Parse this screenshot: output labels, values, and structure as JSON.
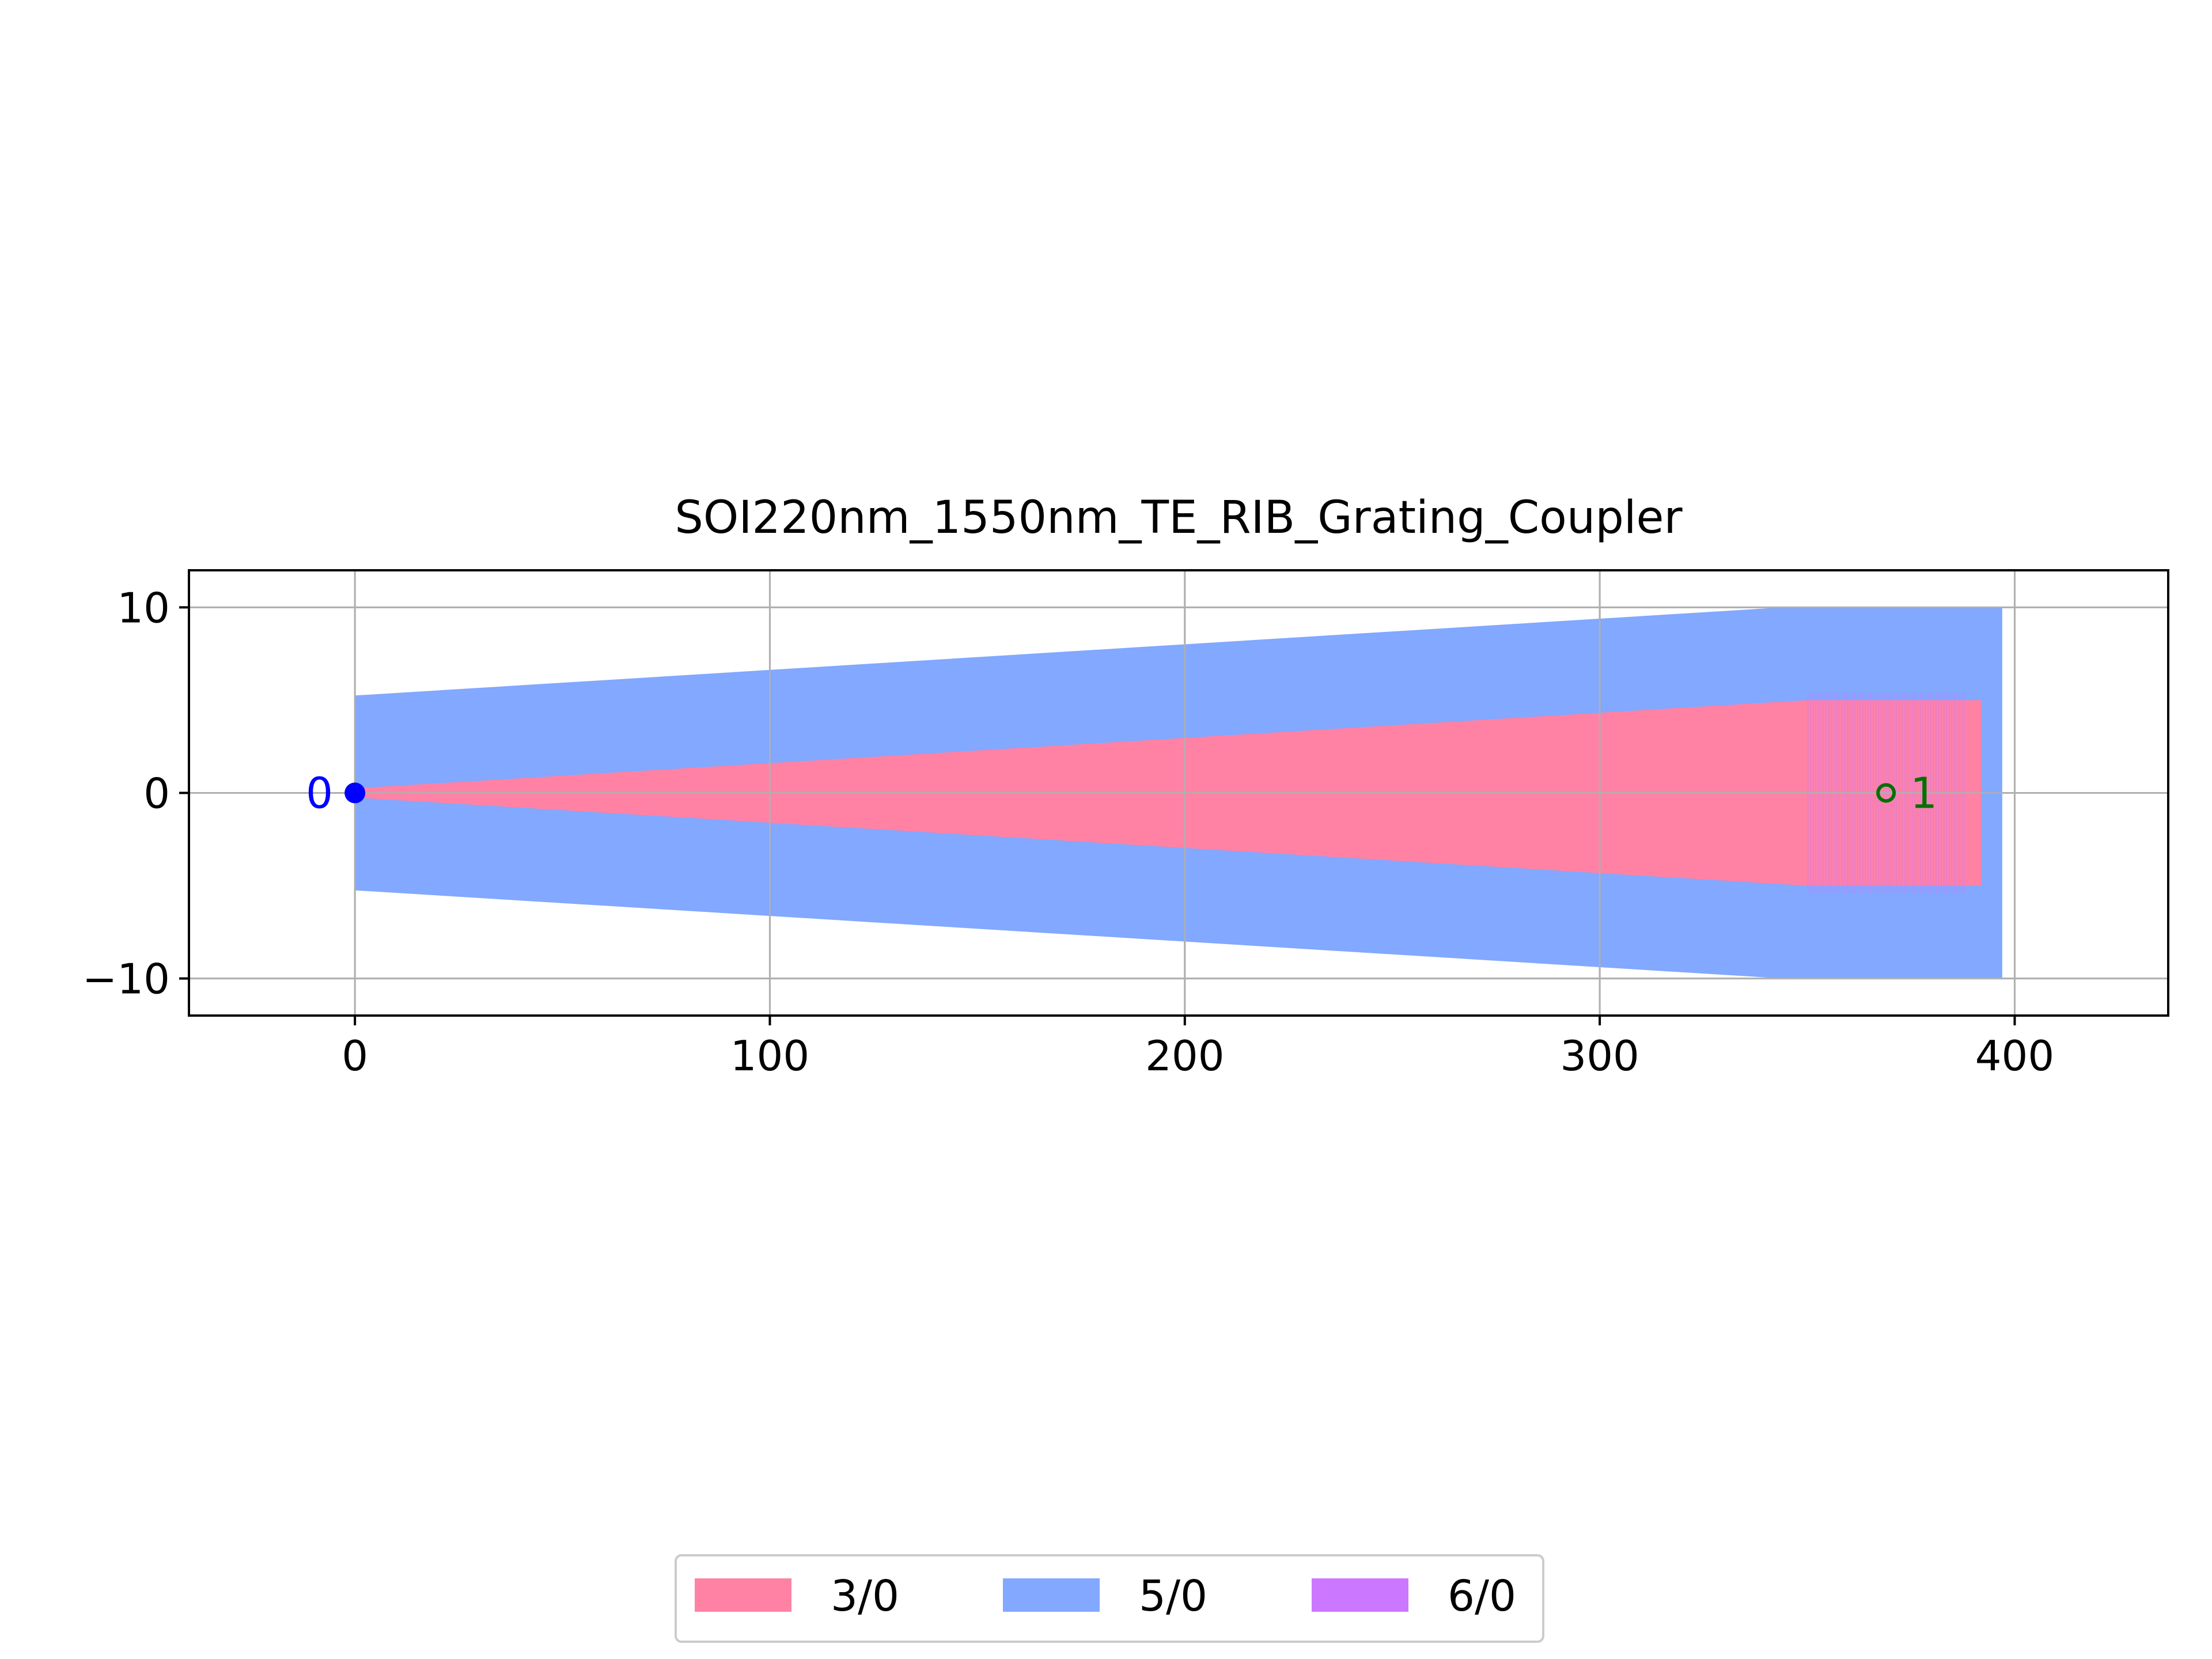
{
  "chart_data": {
    "type": "area",
    "title": "SOI220nm_1550nm_TE_RIB_Grating_Coupler",
    "xlabel": "",
    "ylabel": "",
    "xlim": [
      -40,
      437
    ],
    "ylim": [
      -12,
      12
    ],
    "x_ticks": [
      0,
      100,
      200,
      300,
      400
    ],
    "x_tick_labels": [
      "0",
      "100",
      "200",
      "300",
      "400"
    ],
    "y_ticks": [
      -10,
      0,
      10
    ],
    "y_tick_labels": [
      "−10",
      "0",
      "10"
    ],
    "grid": true,
    "legend_position": "bottom-center",
    "series": [
      {
        "name": "3/0",
        "color": "#ff82a5",
        "shapes": [
          {
            "kind": "polygon",
            "points": [
              [
                0,
                0.25
              ],
              [
                350,
                5
              ],
              [
                392,
                5
              ],
              [
                392,
                -5
              ],
              [
                350,
                -5
              ],
              [
                0,
                -0.25
              ]
            ]
          }
        ]
      },
      {
        "name": "5/0",
        "color": "#82a8ff",
        "shapes": [
          {
            "kind": "polygon",
            "points": [
              [
                0,
                5.25
              ],
              [
                344,
                10
              ],
              [
                397,
                10
              ],
              [
                397,
                -10
              ],
              [
                344,
                -10
              ],
              [
                0,
                -5.25
              ]
            ]
          }
        ]
      },
      {
        "name": "6/0",
        "color": "#cc77ff",
        "shapes": [
          {
            "kind": "grating",
            "x_start": 350,
            "x_end": 388,
            "period": 0.63,
            "y_half_height": 5.4
          }
        ]
      }
    ],
    "ports": [
      {
        "label": "0",
        "x": 0,
        "y": 0,
        "color": "#0000ff",
        "style": "filled"
      },
      {
        "label": "1",
        "x": 369,
        "y": 0,
        "color": "#007000",
        "style": "open"
      }
    ]
  }
}
